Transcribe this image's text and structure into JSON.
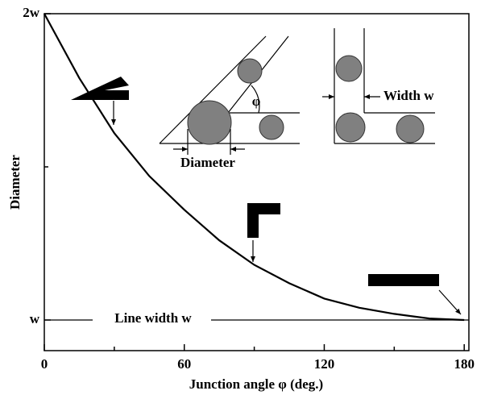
{
  "chart_data": {
    "type": "line",
    "x_label": "Junction angle φ (deg.)",
    "y_label": "Diameter",
    "x": [
      0,
      15,
      30,
      45,
      60,
      75,
      90,
      105,
      120,
      135,
      150,
      165,
      180
    ],
    "series": [
      {
        "color": "#000000",
        "values": [
          2.0,
          1.79,
          1.61,
          1.47,
          1.36,
          1.26,
          1.18,
          1.12,
          1.07,
          1.04,
          1.02,
          1.005,
          1.0
        ]
      }
    ],
    "xlim": [
      0,
      182
    ],
    "xticks": [
      0,
      60,
      120,
      180
    ],
    "xminor_ticks": [
      30,
      90,
      150
    ],
    "ylim": [
      0.9,
      2.0
    ],
    "yticks": [
      {
        "value": 1,
        "label": "w"
      },
      {
        "value": 2,
        "label": "2w"
      }
    ],
    "yminor_ticks": [
      1.5
    ],
    "annotations": {
      "line_width": "Line width w",
      "inset_diameter": "Diameter",
      "inset_width": "Width w",
      "inset_angle": "φ"
    }
  }
}
